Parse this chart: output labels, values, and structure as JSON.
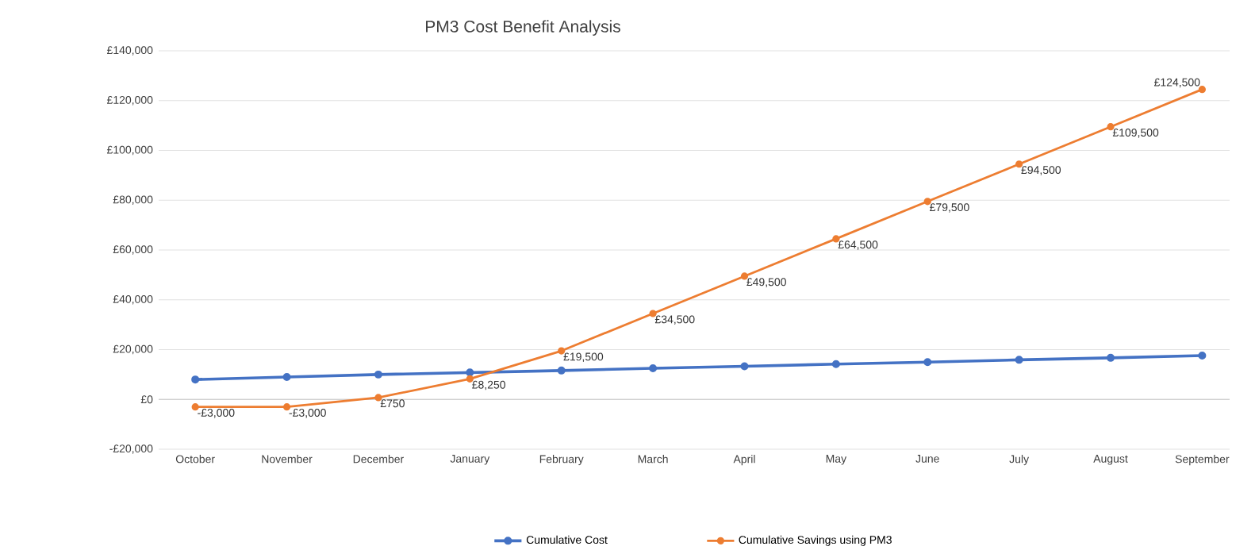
{
  "chart_data": {
    "type": "line",
    "title": "PM3 Cost Benefit Analysis",
    "categories": [
      "October",
      "November",
      "December",
      "January",
      "February",
      "March",
      "April",
      "May",
      "June",
      "July",
      "August",
      "September"
    ],
    "series": [
      {
        "name": "Cumulative Cost",
        "color": "#4472c4",
        "values": [
          8000,
          9000,
          10000,
          10800,
          11600,
          12500,
          13300,
          14200,
          15000,
          15900,
          16700,
          17600
        ]
      },
      {
        "name": "Cumulative Savings using PM3",
        "color": "#ed7d31",
        "values": [
          -3000,
          -3000,
          750,
          8250,
          19500,
          34500,
          49500,
          64500,
          79500,
          94500,
          109500,
          124500
        ],
        "value_labels": [
          "-£3,000",
          "-£3,000",
          "£750",
          "£8,250",
          "£19,500",
          "£34,500",
          "£49,500",
          "£64,500",
          "£79,500",
          "£94,500",
          "£109,500",
          "£124,500"
        ]
      }
    ],
    "ylim": [
      -20000,
      140000
    ],
    "yticks": [
      {
        "value": -20000,
        "label": "-£20,000"
      },
      {
        "value": 0,
        "label": "£0"
      },
      {
        "value": 20000,
        "label": "£20,000"
      },
      {
        "value": 40000,
        "label": "£40,000"
      },
      {
        "value": 60000,
        "label": "£60,000"
      },
      {
        "value": 80000,
        "label": "£80,000"
      },
      {
        "value": 100000,
        "label": "£100,000"
      },
      {
        "value": 120000,
        "label": "£120,000"
      },
      {
        "value": 140000,
        "label": "£140,000"
      }
    ],
    "grid": "y",
    "legend": "bottom",
    "marker": "circle",
    "line_style": "solid"
  }
}
